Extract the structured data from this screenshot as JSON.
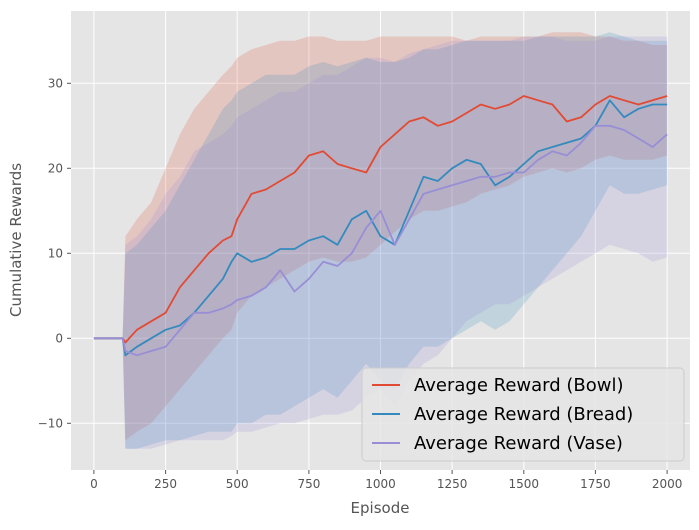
{
  "chart_data": {
    "type": "line",
    "title": "",
    "xlabel": "Episode",
    "ylabel": "Cumulative Rewards",
    "xlim": [
      -80,
      2080
    ],
    "ylim": [
      -15.5,
      38.5
    ],
    "xticks": [
      0,
      250,
      500,
      750,
      1000,
      1250,
      1500,
      1750,
      2000
    ],
    "yticks": [
      -10,
      0,
      10,
      20,
      30
    ],
    "xtick_labels": [
      "0",
      "250",
      "500",
      "750",
      "1000",
      "1250",
      "1500",
      "1750",
      "2000"
    ],
    "ytick_labels": [
      "−10",
      "0",
      "10",
      "20",
      "30"
    ],
    "grid": true,
    "legend_position": "lower-right",
    "series": [
      {
        "name": "Average Reward (Bowl)",
        "color": "#E24A33",
        "x": [
          0,
          100,
          110,
          150,
          200,
          250,
          300,
          350,
          400,
          450,
          480,
          500,
          550,
          600,
          650,
          700,
          750,
          800,
          850,
          900,
          950,
          1000,
          1050,
          1100,
          1150,
          1200,
          1250,
          1300,
          1350,
          1400,
          1450,
          1500,
          1550,
          1600,
          1650,
          1700,
          1750,
          1800,
          1850,
          1900,
          1950,
          2000
        ],
        "y": [
          0,
          0,
          -0.5,
          1,
          2,
          3,
          6,
          8,
          10,
          11.5,
          12,
          14,
          17,
          17.5,
          18.5,
          19.5,
          21.5,
          22,
          20.5,
          20,
          19.5,
          22.5,
          24,
          25.5,
          26,
          25,
          25.5,
          26.5,
          27.5,
          27,
          27.5,
          28.5,
          28,
          27.5,
          25.5,
          26,
          27.5,
          28.5,
          28,
          27.5,
          28,
          28.5
        ],
        "band_upper": [
          0,
          0,
          12,
          14,
          16,
          20,
          24,
          27,
          29,
          31,
          32,
          33,
          34,
          34.5,
          35,
          35,
          35.5,
          35.5,
          35,
          35,
          35,
          35.5,
          35.5,
          35.5,
          35.5,
          35.5,
          35.5,
          35,
          35.5,
          35.5,
          35.5,
          35.5,
          35.5,
          36,
          36,
          36,
          35.5,
          35.5,
          35,
          35,
          34.5,
          34.5
        ],
        "band_lower": [
          0,
          0,
          -12,
          -11,
          -10,
          -8,
          -6,
          -4,
          -2,
          0,
          1,
          3,
          5,
          6,
          7,
          8,
          9,
          9.5,
          9,
          9,
          9.5,
          11,
          12.5,
          14,
          15,
          15,
          15.5,
          16,
          17,
          17.5,
          18,
          19,
          19.5,
          20,
          19.5,
          20,
          21,
          21.5,
          21,
          21,
          21,
          21.5
        ]
      },
      {
        "name": "Average Reward (Bread)",
        "color": "#348ABD",
        "x": [
          0,
          100,
          110,
          150,
          200,
          250,
          300,
          350,
          400,
          450,
          480,
          500,
          550,
          600,
          650,
          700,
          750,
          800,
          850,
          900,
          950,
          1000,
          1050,
          1100,
          1150,
          1200,
          1250,
          1300,
          1350,
          1400,
          1450,
          1500,
          1550,
          1600,
          1650,
          1700,
          1750,
          1800,
          1850,
          1900,
          1950,
          2000
        ],
        "y": [
          0,
          0,
          -2,
          -1,
          0,
          1,
          1.5,
          3,
          5,
          7,
          9,
          10,
          9,
          9.5,
          10.5,
          10.5,
          11.5,
          12,
          11,
          14,
          15,
          12,
          11,
          15,
          19,
          18.5,
          20,
          21,
          20.5,
          18,
          19,
          20.5,
          22,
          22.5,
          23,
          23.5,
          25,
          28,
          26,
          27,
          27.5,
          27.5
        ],
        "band_upper": [
          0,
          0,
          10,
          11,
          13,
          15,
          18,
          21,
          24,
          27,
          28,
          29,
          30,
          31,
          31,
          31,
          32,
          32.5,
          32,
          32.5,
          33,
          32.5,
          32.5,
          33,
          34,
          34,
          34.5,
          35,
          35,
          35,
          35,
          35,
          35.5,
          35.5,
          35.5,
          35.5,
          35.5,
          36,
          35.5,
          35,
          35,
          35
        ],
        "band_lower": [
          0,
          0,
          -13,
          -13,
          -12.5,
          -12,
          -12,
          -11.5,
          -11,
          -11,
          -11,
          -10,
          -10,
          -9,
          -9,
          -8,
          -7,
          -6,
          -7,
          -5,
          -3,
          -5,
          -6,
          -3,
          -1,
          -1,
          0,
          1,
          2,
          1,
          2,
          4,
          6,
          8,
          10,
          12,
          15,
          18,
          17,
          17,
          17.5,
          18
        ]
      },
      {
        "name": "Average Reward (Vase)",
        "color": "#988ED5",
        "x": [
          0,
          100,
          110,
          150,
          200,
          250,
          300,
          350,
          400,
          450,
          480,
          500,
          550,
          600,
          650,
          700,
          750,
          800,
          850,
          900,
          950,
          1000,
          1050,
          1100,
          1150,
          1200,
          1250,
          1300,
          1350,
          1400,
          1450,
          1500,
          1550,
          1600,
          1650,
          1700,
          1750,
          1800,
          1850,
          1900,
          1950,
          2000
        ],
        "y": [
          0,
          0,
          -1.5,
          -2,
          -1.5,
          -1,
          1,
          3,
          3,
          3.5,
          4,
          4.5,
          5,
          6,
          8,
          5.5,
          7,
          9,
          8.5,
          10,
          13,
          15,
          11,
          14,
          17,
          17.5,
          18,
          18.5,
          19,
          19,
          19.5,
          19.5,
          21,
          22,
          21.5,
          23,
          25,
          25,
          24.5,
          23.5,
          22.5,
          24
        ],
        "band_upper": [
          0,
          0,
          11,
          12,
          14,
          17,
          19,
          22,
          23,
          24,
          25,
          26,
          27,
          28,
          29,
          29,
          30,
          31,
          31,
          32,
          33,
          33,
          32.5,
          33.5,
          34,
          34.5,
          35,
          35,
          35,
          35,
          35,
          35.5,
          35.5,
          35.5,
          35,
          35,
          35,
          35.5,
          35.5,
          35.5,
          35.5,
          35.5
        ],
        "band_lower": [
          0,
          0,
          -13,
          -13,
          -13,
          -12.5,
          -12,
          -12,
          -12,
          -12,
          -11.5,
          -11,
          -11,
          -10.5,
          -10,
          -10,
          -9.5,
          -9,
          -9,
          -8.5,
          -7,
          -6,
          -8,
          -5,
          -3,
          -2,
          0,
          2,
          3,
          4,
          4,
          5,
          6,
          7,
          8,
          9,
          10,
          11,
          10.5,
          10,
          9,
          9.5
        ]
      }
    ]
  }
}
